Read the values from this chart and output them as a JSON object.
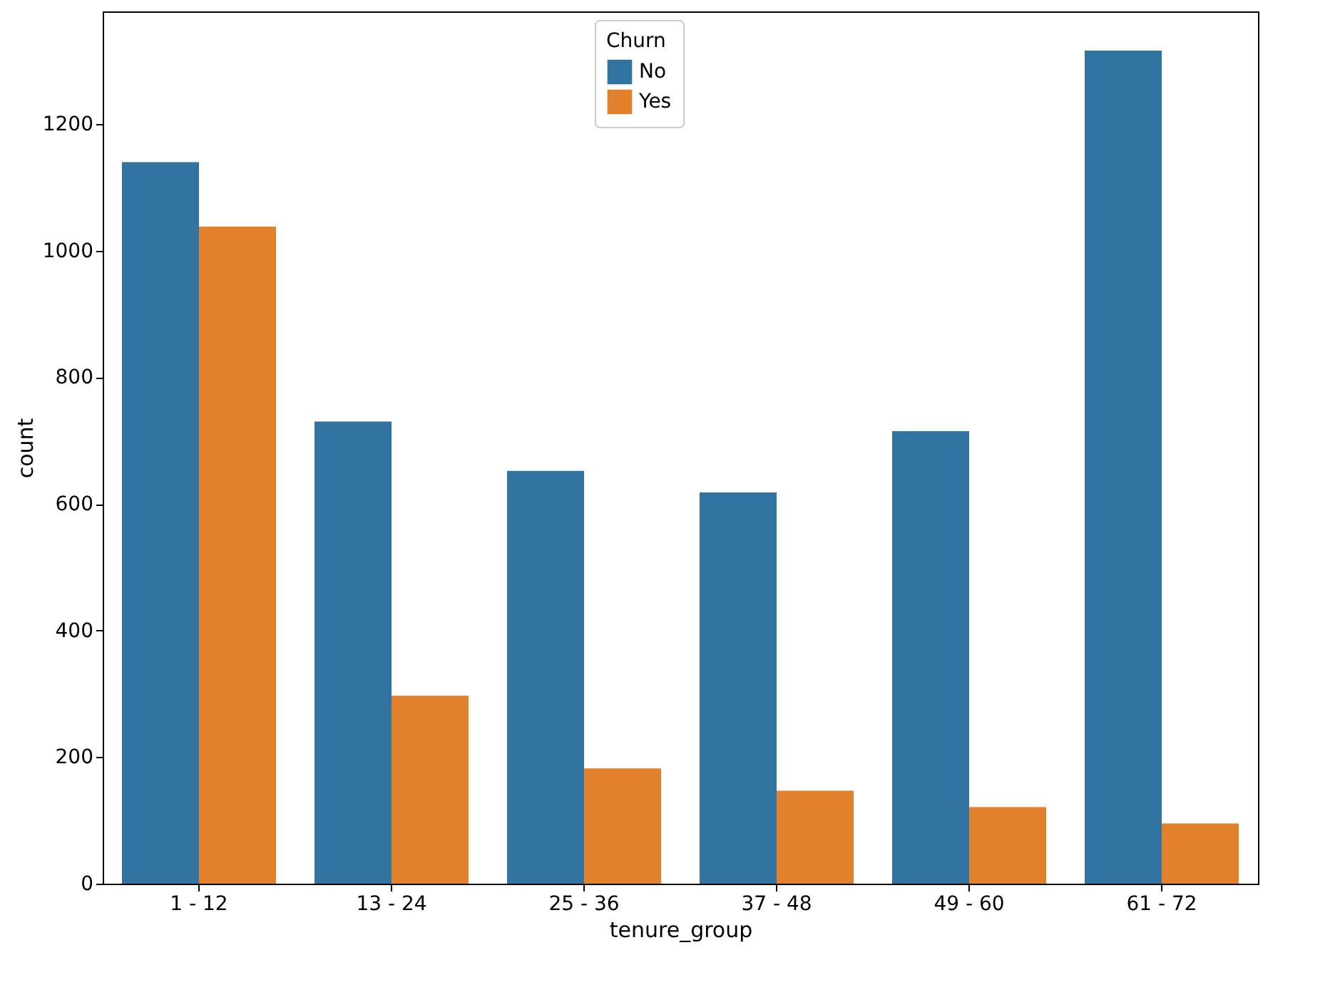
{
  "chart_data": {
    "type": "bar",
    "xlabel": "tenure_group",
    "ylabel": "count",
    "legend_title": "Churn",
    "legend": "top",
    "categories": [
      "1 - 12",
      "13 - 24",
      "25 - 36",
      "37 - 48",
      "49 - 60",
      "61 - 72"
    ],
    "series": [
      {
        "name": "No",
        "color": "#3274a1",
        "values": [
          1140,
          730,
          652,
          618,
          715,
          1316
        ]
      },
      {
        "name": "Yes",
        "color": "#e1812c",
        "values": [
          1038,
          297,
          182,
          147,
          121,
          95
        ]
      }
    ],
    "ylim": [
      0,
      1378
    ],
    "yticks": [
      0,
      200,
      400,
      600,
      800,
      1000,
      1200
    ],
    "grid": false
  }
}
